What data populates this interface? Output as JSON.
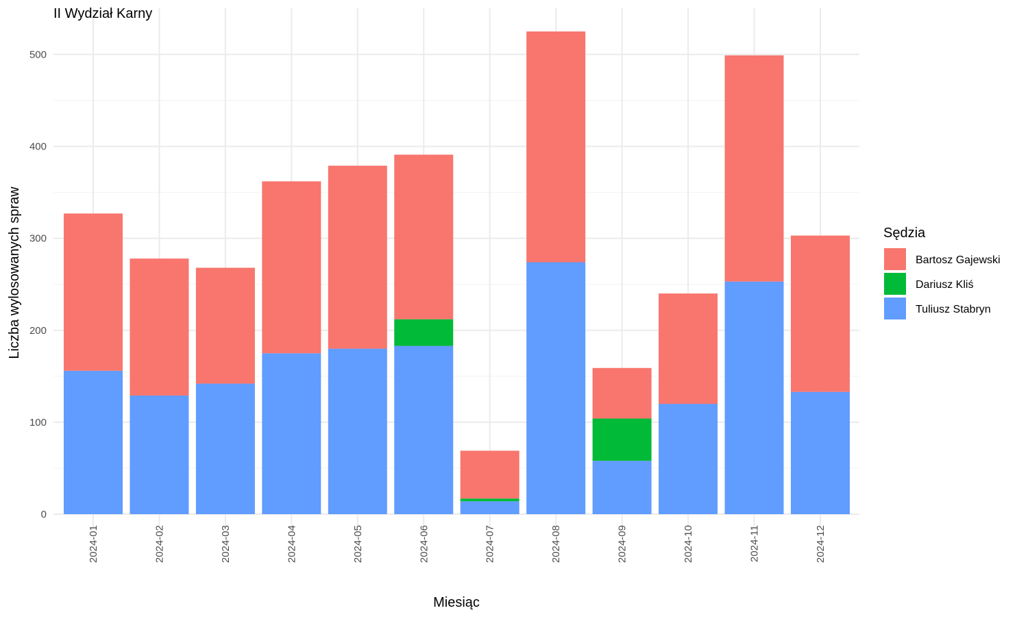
{
  "chart_data": {
    "type": "bar",
    "stacked": true,
    "title": "II Wydział Karny",
    "xlabel": "Miesiąc",
    "ylabel": "Liczba wylosowanych spraw",
    "ylim": [
      0,
      530
    ],
    "yticks": [
      0,
      100,
      200,
      300,
      400,
      500
    ],
    "grid": true,
    "legend_title": "Sędzia",
    "legend_position": "right",
    "categories": [
      "2024-01",
      "2024-02",
      "2024-03",
      "2024-04",
      "2024-05",
      "2024-06",
      "2024-07",
      "2024-08",
      "2024-09",
      "2024-10",
      "2024-11",
      "2024-12"
    ],
    "series": [
      {
        "name": "Tuliusz Stabryn",
        "color": "#619CFF",
        "values": [
          156,
          129,
          142,
          175,
          180,
          183,
          14,
          274,
          58,
          120,
          253,
          133
        ]
      },
      {
        "name": "Dariusz Kliś",
        "color": "#00BA38",
        "values": [
          0,
          0,
          0,
          0,
          0,
          29,
          3,
          0,
          46,
          0,
          0,
          0
        ]
      },
      {
        "name": "Bartosz Gajewski",
        "color": "#F8766D",
        "values": [
          171,
          149,
          126,
          187,
          199,
          179,
          52,
          251,
          55,
          120,
          246,
          170
        ]
      }
    ],
    "legend_order": [
      "Bartosz Gajewski",
      "Dariusz Kliś",
      "Tuliusz Stabryn"
    ]
  }
}
